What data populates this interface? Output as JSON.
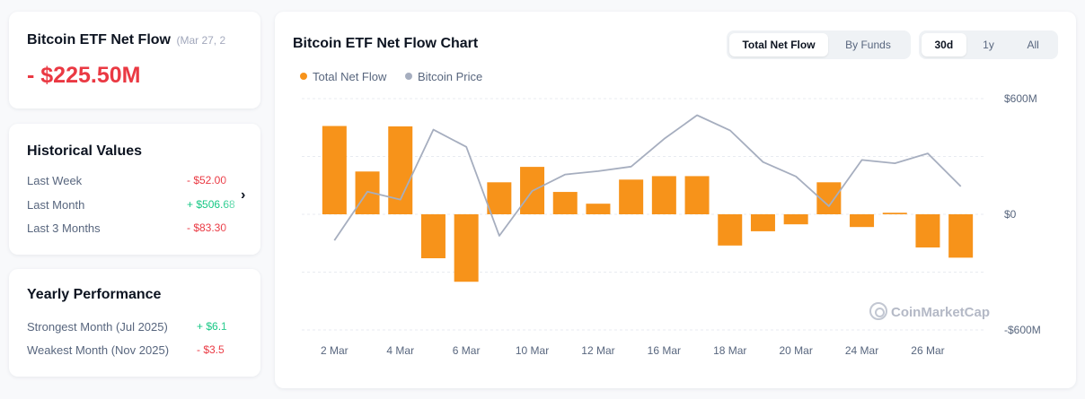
{
  "netflow": {
    "title": "Bitcoin ETF Net Flow",
    "date": "(Mar 27, 2",
    "value": "- $225.50M"
  },
  "historical": {
    "title": "Historical Values",
    "rows": [
      {
        "label": "Last Week",
        "value": "- $52.00"
      },
      {
        "label": "Last Month",
        "value": "+ $506.68"
      },
      {
        "label": "Last 3 Months",
        "value": "- $83.30"
      }
    ],
    "chevron": "›"
  },
  "yearly": {
    "title": "Yearly Performance",
    "rows": [
      {
        "label": "Strongest Month",
        "period": "(Jul 2025)",
        "value": "+ $6.1"
      },
      {
        "label": "Weakest Month",
        "period": "(Nov 2025)",
        "value": "- $3.5"
      }
    ]
  },
  "chart_header": {
    "title": "Bitcoin ETF Net Flow Chart",
    "mode_options": [
      "Total Net Flow",
      "By Funds"
    ],
    "mode_selected": "Total Net Flow",
    "range_options": [
      "30d",
      "1y",
      "All"
    ],
    "range_selected": "30d",
    "watermark": "CoinMarketCap"
  },
  "colors": {
    "flow_bar": "#f7931a",
    "price_line": "#a6aebf",
    "negative": "#ea3943",
    "positive": "#16c784"
  },
  "chart_data": {
    "type": "bar",
    "title": "Bitcoin ETF Net Flow Chart",
    "series": [
      {
        "name": "Total Net Flow",
        "type": "bar",
        "values": [
          458,
          222,
          456,
          -228,
          -350,
          166,
          246,
          116,
          55,
          180,
          198,
          198,
          -162,
          -88,
          -52,
          166,
          -66,
          8,
          -172,
          -225
        ]
      },
      {
        "name": "Bitcoin Price",
        "type": "line",
        "axis": "hidden",
        "values": [
          -0.92,
          -0.18,
          -0.3,
          0.76,
          0.5,
          -0.85,
          -0.17,
          0.08,
          0.13,
          0.2,
          0.62,
          0.98,
          0.75,
          0.27,
          0.05,
          -0.4,
          0.3,
          0.25,
          0.4,
          -0.1
        ]
      }
    ],
    "x_tick_labels": [
      "2 Mar",
      "4 Mar",
      "6 Mar",
      "10 Mar",
      "12 Mar",
      "16 Mar",
      "18 Mar",
      "20 Mar",
      "24 Mar",
      "26 Mar"
    ],
    "x_tick_indices": [
      0,
      2,
      4,
      6,
      8,
      10,
      12,
      14,
      16,
      18
    ],
    "y_tick_labels": [
      "$600M",
      "$0",
      "-$600M"
    ],
    "y_tick_values": [
      600,
      0,
      -600
    ],
    "ylim": [
      -600,
      600
    ],
    "y_unit": "M USD",
    "legend": [
      "Total Net Flow",
      "Bitcoin Price"
    ],
    "legend_position": "top-left",
    "grid": "horizontal-dashed"
  }
}
